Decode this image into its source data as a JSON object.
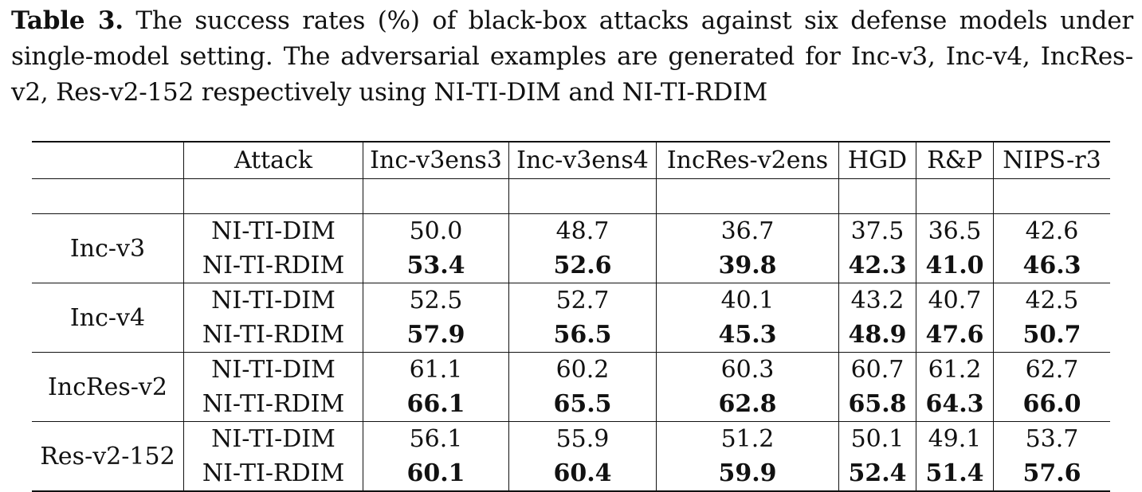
{
  "caption": {
    "label": "Table 3.",
    "text": " The success rates (%) of black-box attacks against six defense models under single-model setting. The adversarial examples are generated for Inc-v3, Inc-v4, IncRes-v2, Res-v2-152 respectively using NI-TI-DIM and NI-TI-RDIM"
  },
  "table": {
    "header": {
      "model": "",
      "attack": "Attack",
      "defenses": [
        "Inc-v3ens3",
        "Inc-v3ens4",
        "IncRes-v2ens",
        "HGD",
        "R&P",
        "NIPS-r3"
      ]
    },
    "groups": [
      {
        "model": "Inc-v3",
        "rows": [
          {
            "attack": "NI-TI-DIM",
            "values": [
              "50.0",
              "48.7",
              "36.7",
              "37.5",
              "36.5",
              "42.6"
            ]
          },
          {
            "attack": "NI-TI-RDIM",
            "values": [
              "53.4",
              "52.6",
              "39.8",
              "42.3",
              "41.0",
              "46.3"
            ]
          }
        ]
      },
      {
        "model": "Inc-v4",
        "rows": [
          {
            "attack": "NI-TI-DIM",
            "values": [
              "52.5",
              "52.7",
              "40.1",
              "43.2",
              "40.7",
              "42.5"
            ]
          },
          {
            "attack": "NI-TI-RDIM",
            "values": [
              "57.9",
              "56.5",
              "45.3",
              "48.9",
              "47.6",
              "50.7"
            ]
          }
        ]
      },
      {
        "model": "IncRes-v2",
        "rows": [
          {
            "attack": "NI-TI-DIM",
            "values": [
              "61.1",
              "60.2",
              "60.3",
              "60.7",
              "61.2",
              "62.7"
            ]
          },
          {
            "attack": "NI-TI-RDIM",
            "values": [
              "66.1",
              "65.5",
              "62.8",
              "65.8",
              "64.3",
              "66.0"
            ]
          }
        ]
      },
      {
        "model": "Res-v2-152",
        "rows": [
          {
            "attack": "NI-TI-DIM",
            "values": [
              "56.1",
              "55.9",
              "51.2",
              "50.1",
              "49.1",
              "53.7"
            ]
          },
          {
            "attack": "NI-TI-RDIM",
            "values": [
              "60.1",
              "60.4",
              "59.9",
              "52.4",
              "51.4",
              "57.6"
            ]
          }
        ]
      }
    ]
  }
}
